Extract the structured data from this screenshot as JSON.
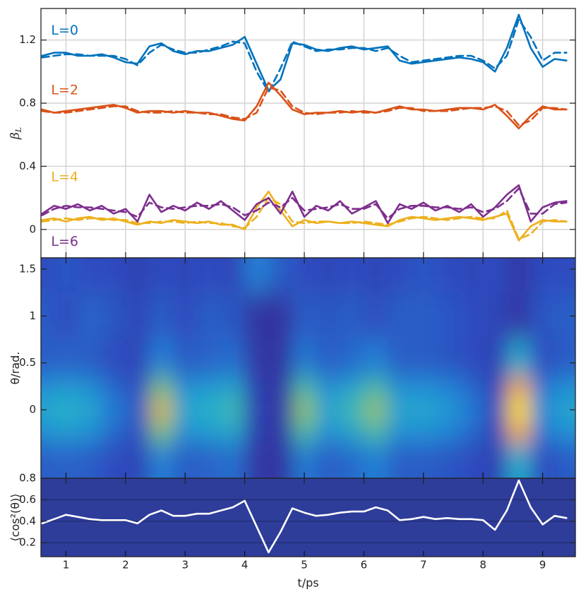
{
  "chart_data": [
    {
      "type": "line",
      "ylabel": "β",
      "ylabel_sub": "L",
      "xlim": [
        0.58,
        9.55
      ],
      "xticks": [
        1,
        2,
        3,
        4,
        5,
        6,
        7,
        8,
        9
      ],
      "ylim": [
        -0.18,
        1.4
      ],
      "yticks": [
        0,
        0.4,
        0.8,
        1.2
      ],
      "grid": true,
      "x": [
        0.6,
        0.8,
        1.0,
        1.2,
        1.4,
        1.6,
        1.8,
        2.0,
        2.2,
        2.4,
        2.6,
        2.8,
        3.0,
        3.2,
        3.4,
        3.6,
        3.8,
        4.0,
        4.2,
        4.4,
        4.6,
        4.8,
        5.0,
        5.2,
        5.4,
        5.6,
        5.8,
        6.0,
        6.2,
        6.4,
        6.6,
        6.8,
        7.0,
        7.2,
        7.4,
        7.6,
        7.8,
        8.0,
        8.2,
        8.4,
        8.6,
        8.8,
        9.0,
        9.2,
        9.4
      ],
      "series": [
        {
          "color": "#0072bd",
          "dash": "solid",
          "values": [
            1.1,
            1.12,
            1.12,
            1.1,
            1.1,
            1.11,
            1.09,
            1.06,
            1.05,
            1.16,
            1.18,
            1.13,
            1.11,
            1.13,
            1.13,
            1.15,
            1.17,
            1.22,
            1.05,
            0.88,
            0.95,
            1.18,
            1.17,
            1.14,
            1.13,
            1.15,
            1.16,
            1.14,
            1.15,
            1.16,
            1.07,
            1.05,
            1.06,
            1.07,
            1.08,
            1.09,
            1.08,
            1.06,
            1.0,
            1.15,
            1.36,
            1.15,
            1.03,
            1.08,
            1.07
          ]
        },
        {
          "color": "#0072bd",
          "dash": "dashed",
          "values": [
            1.09,
            1.1,
            1.11,
            1.11,
            1.1,
            1.1,
            1.1,
            1.08,
            1.04,
            1.12,
            1.17,
            1.14,
            1.12,
            1.12,
            1.14,
            1.16,
            1.19,
            1.18,
            1.0,
            0.87,
            1.02,
            1.19,
            1.16,
            1.13,
            1.14,
            1.14,
            1.15,
            1.15,
            1.13,
            1.15,
            1.1,
            1.06,
            1.07,
            1.08,
            1.09,
            1.1,
            1.1,
            1.07,
            1.02,
            1.1,
            1.33,
            1.22,
            1.07,
            1.12,
            1.12
          ]
        },
        {
          "color": "#d95319",
          "dash": "solid",
          "values": [
            0.76,
            0.74,
            0.75,
            0.76,
            0.77,
            0.78,
            0.79,
            0.77,
            0.74,
            0.75,
            0.75,
            0.74,
            0.75,
            0.74,
            0.74,
            0.72,
            0.7,
            0.69,
            0.78,
            0.93,
            0.85,
            0.76,
            0.73,
            0.74,
            0.74,
            0.75,
            0.74,
            0.75,
            0.74,
            0.76,
            0.78,
            0.76,
            0.76,
            0.75,
            0.76,
            0.77,
            0.77,
            0.76,
            0.79,
            0.72,
            0.64,
            0.72,
            0.78,
            0.76,
            0.76
          ]
        },
        {
          "color": "#d95319",
          "dash": "dashed",
          "values": [
            0.75,
            0.74,
            0.74,
            0.75,
            0.76,
            0.77,
            0.78,
            0.78,
            0.75,
            0.74,
            0.74,
            0.75,
            0.74,
            0.74,
            0.73,
            0.73,
            0.71,
            0.7,
            0.74,
            0.9,
            0.88,
            0.78,
            0.74,
            0.73,
            0.74,
            0.74,
            0.75,
            0.74,
            0.74,
            0.75,
            0.77,
            0.77,
            0.75,
            0.75,
            0.75,
            0.76,
            0.77,
            0.77,
            0.78,
            0.75,
            0.66,
            0.69,
            0.77,
            0.77,
            0.76
          ]
        },
        {
          "color": "#edb120",
          "dash": "solid",
          "values": [
            0.06,
            0.07,
            0.05,
            0.07,
            0.08,
            0.06,
            0.07,
            0.05,
            0.03,
            0.05,
            0.04,
            0.06,
            0.05,
            0.04,
            0.05,
            0.03,
            0.03,
            0.0,
            0.14,
            0.24,
            0.12,
            0.02,
            0.06,
            0.04,
            0.05,
            0.04,
            0.05,
            0.04,
            0.03,
            0.02,
            0.06,
            0.08,
            0.07,
            0.06,
            0.07,
            0.08,
            0.07,
            0.06,
            0.08,
            0.1,
            -0.07,
            0.02,
            0.06,
            0.05,
            0.05
          ]
        },
        {
          "color": "#edb120",
          "dash": "dashed",
          "values": [
            0.05,
            0.06,
            0.07,
            0.06,
            0.07,
            0.07,
            0.06,
            0.06,
            0.04,
            0.04,
            0.05,
            0.05,
            0.04,
            0.05,
            0.04,
            0.04,
            0.02,
            0.01,
            0.08,
            0.2,
            0.16,
            0.05,
            0.04,
            0.05,
            0.05,
            0.04,
            0.04,
            0.05,
            0.04,
            0.03,
            0.05,
            0.07,
            0.08,
            0.07,
            0.06,
            0.07,
            0.08,
            0.07,
            0.07,
            0.12,
            -0.06,
            -0.03,
            0.05,
            0.06,
            0.05
          ]
        },
        {
          "color": "#7e2f8e",
          "dash": "solid",
          "values": [
            0.1,
            0.15,
            0.13,
            0.16,
            0.12,
            0.15,
            0.1,
            0.13,
            0.05,
            0.22,
            0.11,
            0.15,
            0.12,
            0.17,
            0.13,
            0.18,
            0.12,
            0.06,
            0.16,
            0.2,
            0.1,
            0.24,
            0.08,
            0.15,
            0.12,
            0.18,
            0.1,
            0.14,
            0.18,
            0.04,
            0.16,
            0.13,
            0.17,
            0.12,
            0.15,
            0.11,
            0.16,
            0.08,
            0.14,
            0.22,
            0.28,
            0.05,
            0.14,
            0.17,
            0.18
          ]
        },
        {
          "color": "#7e2f8e",
          "dash": "dashed",
          "values": [
            0.09,
            0.13,
            0.15,
            0.14,
            0.14,
            0.13,
            0.12,
            0.11,
            0.08,
            0.17,
            0.14,
            0.13,
            0.14,
            0.15,
            0.15,
            0.16,
            0.14,
            0.09,
            0.12,
            0.17,
            0.14,
            0.2,
            0.12,
            0.13,
            0.14,
            0.16,
            0.13,
            0.13,
            0.16,
            0.07,
            0.13,
            0.15,
            0.15,
            0.14,
            0.14,
            0.13,
            0.14,
            0.11,
            0.13,
            0.18,
            0.26,
            0.1,
            0.1,
            0.16,
            0.17
          ]
        }
      ],
      "annotations": [
        {
          "text": "L=0",
          "x": 0.75,
          "y": 1.26,
          "color": "#0072bd"
        },
        {
          "text": "L=2",
          "x": 0.75,
          "y": 0.88,
          "color": "#d95319"
        },
        {
          "text": "L=4",
          "x": 0.75,
          "y": 0.33,
          "color": "#edb120"
        },
        {
          "text": "L=6",
          "x": 0.75,
          "y": -0.08,
          "color": "#7e2f8e"
        }
      ]
    },
    {
      "type": "heatmap",
      "ylabel": "θ/rad.",
      "xlim": [
        0.58,
        9.55
      ],
      "xticks": [
        1,
        2,
        3,
        4,
        5,
        6,
        7,
        8,
        9
      ],
      "ylim": [
        -0.73,
        1.62
      ],
      "yticks": [
        0,
        0.5,
        1,
        1.5
      ],
      "clim": [
        0,
        1
      ],
      "x": [
        0.6,
        1.0,
        1.4,
        1.8,
        2.2,
        2.6,
        3.0,
        3.4,
        3.8,
        4.2,
        4.6,
        5.0,
        5.4,
        5.8,
        6.2,
        6.6,
        7.0,
        7.4,
        7.8,
        8.2,
        8.6,
        9.0,
        9.4
      ],
      "y": [
        -0.5,
        -0.2,
        0,
        0.2,
        0.5,
        1.0,
        1.5
      ],
      "values": [
        [
          0.2,
          0.22,
          0.2,
          0.15,
          0.12,
          0.3,
          0.2,
          0.22,
          0.25,
          0.05,
          0.03,
          0.28,
          0.2,
          0.24,
          0.3,
          0.2,
          0.2,
          0.18,
          0.15,
          0.1,
          0.45,
          0.15,
          0.2
        ],
        [
          0.36,
          0.4,
          0.36,
          0.24,
          0.16,
          0.64,
          0.36,
          0.4,
          0.44,
          0.08,
          0.04,
          0.56,
          0.36,
          0.44,
          0.56,
          0.36,
          0.36,
          0.32,
          0.24,
          0.12,
          0.9,
          0.28,
          0.36
        ],
        [
          0.45,
          0.5,
          0.45,
          0.3,
          0.2,
          0.8,
          0.45,
          0.5,
          0.55,
          0.1,
          0.05,
          0.7,
          0.45,
          0.55,
          0.7,
          0.45,
          0.45,
          0.4,
          0.3,
          0.15,
          1.0,
          0.35,
          0.45
        ],
        [
          0.36,
          0.4,
          0.36,
          0.24,
          0.16,
          0.64,
          0.36,
          0.4,
          0.44,
          0.08,
          0.04,
          0.56,
          0.36,
          0.44,
          0.56,
          0.36,
          0.36,
          0.32,
          0.24,
          0.12,
          0.9,
          0.28,
          0.36
        ],
        [
          0.2,
          0.22,
          0.2,
          0.15,
          0.12,
          0.3,
          0.2,
          0.22,
          0.25,
          0.05,
          0.03,
          0.28,
          0.2,
          0.24,
          0.3,
          0.2,
          0.2,
          0.18,
          0.15,
          0.1,
          0.45,
          0.15,
          0.2
        ],
        [
          0.2,
          0.15,
          0.22,
          0.18,
          0.12,
          0.2,
          0.15,
          0.2,
          0.18,
          0.03,
          0.02,
          0.2,
          0.18,
          0.2,
          0.16,
          0.2,
          0.2,
          0.18,
          0.15,
          0.12,
          0.05,
          0.18,
          0.2
        ],
        [
          0.15,
          0.18,
          0.15,
          0.15,
          0.1,
          0.15,
          0.12,
          0.15,
          0.12,
          0.3,
          0.2,
          0.15,
          0.12,
          0.15,
          0.12,
          0.15,
          0.18,
          0.15,
          0.12,
          0.15,
          0.05,
          0.15,
          0.15
        ]
      ]
    },
    {
      "type": "line",
      "ylabel": "⟨cos²(θ)⟩",
      "xlabel": "t/ps",
      "xlim": [
        0.58,
        9.55
      ],
      "xticks": [
        1,
        2,
        3,
        4,
        5,
        6,
        7,
        8,
        9
      ],
      "ylim": [
        0.07,
        0.8
      ],
      "yticks": [
        0.2,
        0.4,
        0.6,
        0.8
      ],
      "grid": true,
      "x": [
        0.6,
        0.8,
        1.0,
        1.2,
        1.4,
        1.6,
        1.8,
        2.0,
        2.2,
        2.4,
        2.6,
        2.8,
        3.0,
        3.2,
        3.4,
        3.6,
        3.8,
        4.0,
        4.2,
        4.4,
        4.6,
        4.8,
        5.0,
        5.2,
        5.4,
        5.6,
        5.8,
        6.0,
        6.2,
        6.4,
        6.6,
        6.8,
        7.0,
        7.2,
        7.4,
        7.6,
        7.8,
        8.0,
        8.2,
        8.4,
        8.6,
        8.8,
        9.0,
        9.2,
        9.4
      ],
      "series": [
        {
          "color": "#ffffff",
          "dash": "solid",
          "values": [
            0.38,
            0.42,
            0.46,
            0.44,
            0.42,
            0.41,
            0.41,
            0.41,
            0.38,
            0.46,
            0.5,
            0.45,
            0.45,
            0.47,
            0.47,
            0.5,
            0.53,
            0.59,
            0.35,
            0.11,
            0.3,
            0.52,
            0.48,
            0.45,
            0.46,
            0.48,
            0.49,
            0.49,
            0.53,
            0.5,
            0.41,
            0.42,
            0.44,
            0.42,
            0.43,
            0.42,
            0.42,
            0.41,
            0.32,
            0.5,
            0.78,
            0.53,
            0.37,
            0.45,
            0.43
          ]
        }
      ]
    }
  ]
}
